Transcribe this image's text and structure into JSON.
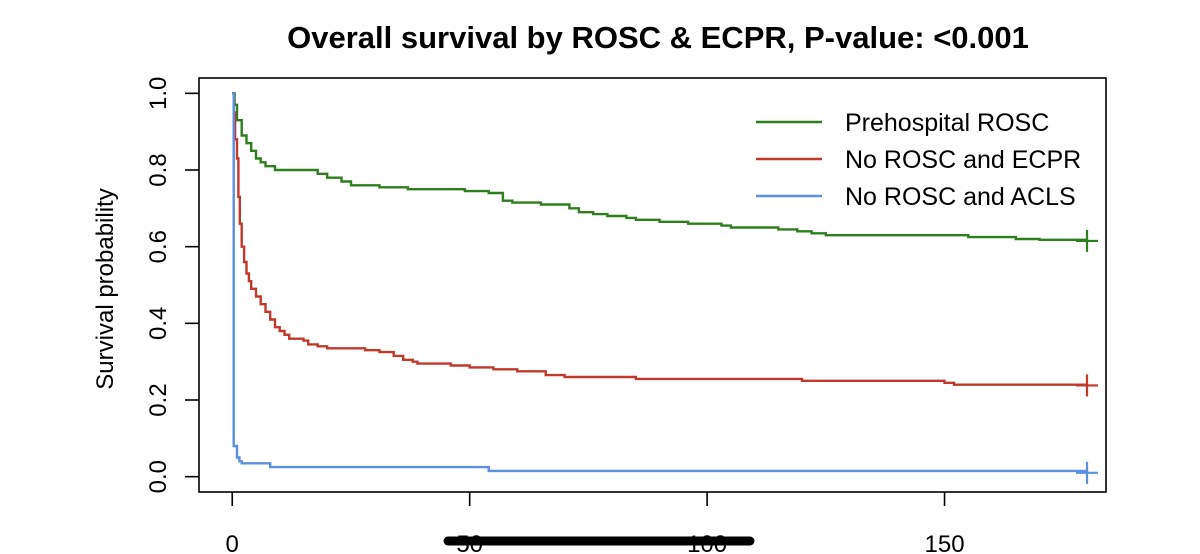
{
  "chart_data": {
    "type": "line",
    "title": "Overall survival by ROSC & ECPR, P-value: <0.001",
    "xlabel": "",
    "ylabel": "Survival probability",
    "xlim": [
      -7,
      184
    ],
    "ylim": [
      -0.04,
      1.04
    ],
    "x_ticks": [
      0,
      50,
      100,
      150
    ],
    "x_tick_labels": [
      "0",
      "50",
      "100",
      "150"
    ],
    "y_ticks": [
      0.0,
      0.2,
      0.4,
      0.6,
      0.8,
      1.0
    ],
    "y_tick_labels": [
      "0.0",
      "0.2",
      "0.4",
      "0.6",
      "0.8",
      "1.0"
    ],
    "legend_position": "top-right",
    "grid": false,
    "series": [
      {
        "name": "Prehospital ROSC",
        "color": "#2e7d1f",
        "censor_x": 180,
        "steps": [
          [
            0,
            1.0
          ],
          [
            0.5,
            0.97
          ],
          [
            1,
            0.93
          ],
          [
            2,
            0.89
          ],
          [
            3,
            0.87
          ],
          [
            4,
            0.85
          ],
          [
            5,
            0.83
          ],
          [
            6,
            0.82
          ],
          [
            7,
            0.81
          ],
          [
            9,
            0.8
          ],
          [
            18,
            0.79
          ],
          [
            20,
            0.78
          ],
          [
            23,
            0.77
          ],
          [
            25,
            0.76
          ],
          [
            31,
            0.755
          ],
          [
            37,
            0.75
          ],
          [
            49,
            0.745
          ],
          [
            54,
            0.74
          ],
          [
            57,
            0.72
          ],
          [
            59,
            0.715
          ],
          [
            65,
            0.71
          ],
          [
            71,
            0.7
          ],
          [
            73,
            0.69
          ],
          [
            76,
            0.685
          ],
          [
            79,
            0.68
          ],
          [
            83,
            0.675
          ],
          [
            85,
            0.67
          ],
          [
            90,
            0.665
          ],
          [
            96,
            0.66
          ],
          [
            103,
            0.655
          ],
          [
            105,
            0.65
          ],
          [
            115,
            0.645
          ],
          [
            119,
            0.64
          ],
          [
            122,
            0.635
          ],
          [
            125,
            0.63
          ],
          [
            155,
            0.625
          ],
          [
            165,
            0.62
          ],
          [
            170,
            0.618
          ],
          [
            180,
            0.615
          ]
        ]
      },
      {
        "name": "No ROSC and ECPR",
        "color": "#c0392b",
        "censor_x": 180,
        "steps": [
          [
            0,
            1.0
          ],
          [
            0.3,
            0.95
          ],
          [
            0.6,
            0.88
          ],
          [
            1,
            0.83
          ],
          [
            1.3,
            0.73
          ],
          [
            1.6,
            0.66
          ],
          [
            2,
            0.6
          ],
          [
            2.5,
            0.56
          ],
          [
            3,
            0.53
          ],
          [
            3.5,
            0.51
          ],
          [
            4,
            0.49
          ],
          [
            5,
            0.47
          ],
          [
            6,
            0.45
          ],
          [
            7,
            0.43
          ],
          [
            8,
            0.41
          ],
          [
            9,
            0.39
          ],
          [
            10,
            0.38
          ],
          [
            11,
            0.37
          ],
          [
            12,
            0.36
          ],
          [
            15,
            0.355
          ],
          [
            16,
            0.345
          ],
          [
            18,
            0.34
          ],
          [
            20,
            0.335
          ],
          [
            28,
            0.33
          ],
          [
            31,
            0.325
          ],
          [
            34,
            0.315
          ],
          [
            36,
            0.305
          ],
          [
            38,
            0.3
          ],
          [
            39,
            0.295
          ],
          [
            46,
            0.29
          ],
          [
            50,
            0.285
          ],
          [
            55,
            0.28
          ],
          [
            60,
            0.275
          ],
          [
            66,
            0.265
          ],
          [
            70,
            0.26
          ],
          [
            85,
            0.255
          ],
          [
            120,
            0.25
          ],
          [
            150,
            0.245
          ],
          [
            152,
            0.24
          ],
          [
            180,
            0.238
          ]
        ]
      },
      {
        "name": "No ROSC and ACLS",
        "color": "#5b8fe0",
        "censor_x": 180,
        "steps": [
          [
            0,
            1.0
          ],
          [
            0.3,
            0.08
          ],
          [
            1,
            0.05
          ],
          [
            1.5,
            0.04
          ],
          [
            2,
            0.035
          ],
          [
            8,
            0.025
          ],
          [
            54,
            0.015
          ],
          [
            180,
            0.01
          ]
        ]
      }
    ]
  }
}
